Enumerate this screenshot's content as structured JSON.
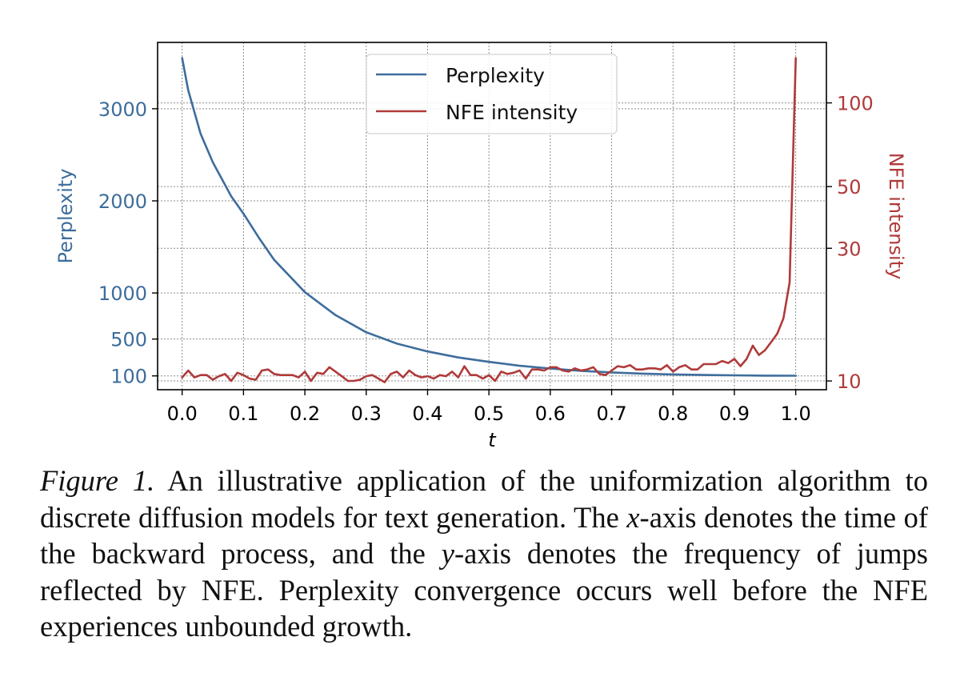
{
  "chart_data": {
    "type": "line",
    "title": "",
    "xlabel": "t",
    "xlim": [
      -0.04,
      1.05
    ],
    "xticks": [
      0.0,
      0.1,
      0.2,
      0.3,
      0.4,
      0.5,
      0.6,
      0.7,
      0.8,
      0.9,
      1.0
    ],
    "xtick_labels": [
      "0.0",
      "0.1",
      "0.2",
      "0.3",
      "0.4",
      "0.5",
      "0.6",
      "0.7",
      "0.8",
      "0.9",
      "1.0"
    ],
    "grid": true,
    "legend": {
      "placement": "top-center",
      "entries": [
        "Perplexity",
        "NFE intensity"
      ]
    },
    "left_axis": {
      "label": "Perplexity",
      "scale": "linear",
      "ylim": [
        -50,
        3720
      ],
      "ticks": [
        100,
        500,
        1000,
        2000,
        3000
      ],
      "tick_labels": [
        "100",
        "500",
        "1000",
        "2000",
        "3000"
      ],
      "color": "#3e6d9c"
    },
    "right_axis": {
      "label": "NFE intensity",
      "scale": "log",
      "ylim": [
        9.3,
        165
      ],
      "ticks": [
        10,
        30,
        50,
        100
      ],
      "tick_labels": [
        "10",
        "30",
        "50",
        "100"
      ],
      "color": "#b03a3a"
    },
    "series": [
      {
        "name": "Perplexity",
        "axis": "left",
        "color": "#3e6d9c",
        "x": [
          0.0,
          0.01,
          0.03,
          0.05,
          0.08,
          0.1,
          0.125,
          0.15,
          0.2,
          0.25,
          0.3,
          0.35,
          0.4,
          0.45,
          0.5,
          0.55,
          0.6,
          0.65,
          0.7,
          0.75,
          0.8,
          0.85,
          0.9,
          0.95,
          1.0
        ],
        "values": [
          3550,
          3200,
          2730,
          2420,
          2050,
          1860,
          1600,
          1360,
          1009,
          760,
          574,
          450,
          365,
          300,
          252,
          210,
          180,
          155,
          138,
          125,
          116,
          110,
          106,
          103,
          102
        ]
      },
      {
        "name": "NFE intensity",
        "axis": "right",
        "color": "#b03a3a",
        "x": [
          0.0,
          0.01,
          0.02,
          0.03,
          0.04,
          0.05,
          0.06,
          0.07,
          0.08,
          0.09,
          0.1,
          0.11,
          0.12,
          0.13,
          0.14,
          0.15,
          0.16,
          0.17,
          0.18,
          0.19,
          0.2,
          0.21,
          0.22,
          0.23,
          0.24,
          0.25,
          0.26,
          0.27,
          0.28,
          0.29,
          0.3,
          0.31,
          0.32,
          0.33,
          0.34,
          0.35,
          0.36,
          0.37,
          0.38,
          0.39,
          0.4,
          0.41,
          0.42,
          0.43,
          0.44,
          0.45,
          0.46,
          0.47,
          0.48,
          0.49,
          0.5,
          0.51,
          0.52,
          0.53,
          0.54,
          0.55,
          0.56,
          0.57,
          0.58,
          0.59,
          0.6,
          0.61,
          0.62,
          0.63,
          0.64,
          0.65,
          0.66,
          0.67,
          0.68,
          0.69,
          0.7,
          0.71,
          0.72,
          0.73,
          0.74,
          0.75,
          0.76,
          0.77,
          0.78,
          0.79,
          0.8,
          0.81,
          0.82,
          0.83,
          0.84,
          0.85,
          0.86,
          0.87,
          0.88,
          0.89,
          0.9,
          0.91,
          0.92,
          0.93,
          0.94,
          0.95,
          0.96,
          0.97,
          0.98,
          0.99,
          1.0
        ],
        "values": [
          10.3,
          10.9,
          10.3,
          10.5,
          10.5,
          10.1,
          10.4,
          10.6,
          10.0,
          10.7,
          10.5,
          10.2,
          10.1,
          10.9,
          11.0,
          10.6,
          10.5,
          10.5,
          10.5,
          10.3,
          10.8,
          10.0,
          10.7,
          10.6,
          11.2,
          10.8,
          10.4,
          10.0,
          10.0,
          10.1,
          10.4,
          10.5,
          10.2,
          9.9,
          10.6,
          10.8,
          10.3,
          10.9,
          10.5,
          10.3,
          10.4,
          10.2,
          10.5,
          10.4,
          10.8,
          10.3,
          11.3,
          10.5,
          10.5,
          10.2,
          10.5,
          10.0,
          10.8,
          10.6,
          10.7,
          10.9,
          10.2,
          11.0,
          11.0,
          10.9,
          11.2,
          11.2,
          10.9,
          10.8,
          11.1,
          10.9,
          11.0,
          11.2,
          10.6,
          10.5,
          10.9,
          11.3,
          11.2,
          11.4,
          11.0,
          11.0,
          11.1,
          11.1,
          11.0,
          11.4,
          10.8,
          11.2,
          11.4,
          11.0,
          11.0,
          11.5,
          11.5,
          11.5,
          11.8,
          11.6,
          12.0,
          11.3,
          12.0,
          13.4,
          12.4,
          12.9,
          13.8,
          14.8,
          16.8,
          22.6,
          145
        ]
      }
    ]
  },
  "caption": {
    "label": "Figure 1.",
    "text_1": " An illustrative application of the uniformization algorithm to discrete diffusion models for text generation. The ",
    "math_x": "x",
    "text_2": "-axis denotes the time of the backward process, and the ",
    "math_y": "y",
    "text_3": "-axis denotes the frequency of jumps reflected by NFE. Perplexity convergence occurs well before the NFE experiences unbounded growth."
  }
}
